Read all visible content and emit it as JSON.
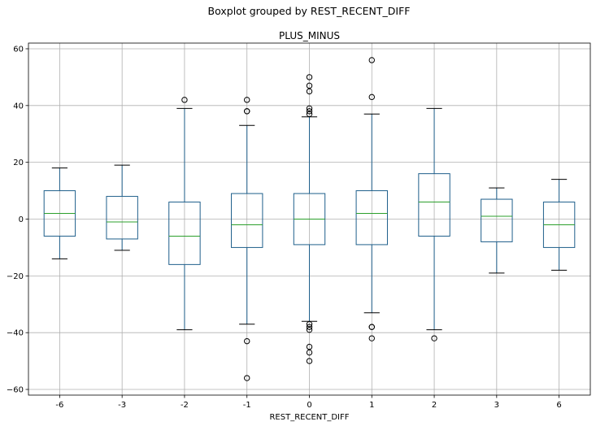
{
  "chart_data": {
    "type": "boxplot",
    "suptitle": "Boxplot grouped by REST_RECENT_DIFF",
    "title": "PLUS_MINUS",
    "xlabel": "REST_RECENT_DIFF",
    "ylabel": "",
    "ylim": [
      -62,
      62
    ],
    "yticks": [
      -60,
      -40,
      -20,
      0,
      20,
      40,
      60
    ],
    "grid": true,
    "colors": {
      "box": "#1f5f8b",
      "median": "#2ca02c",
      "grid": "#b0b0b0",
      "flier": "#000000"
    },
    "categories": [
      "-6",
      "-3",
      "-2",
      "-1",
      "0",
      "1",
      "2",
      "3",
      "6"
    ],
    "boxes": [
      {
        "category": "-6",
        "whislo": -14,
        "q1": -6,
        "med": 2,
        "q3": 10,
        "whishi": 18,
        "fliers": []
      },
      {
        "category": "-3",
        "whislo": -11,
        "q1": -7,
        "med": -1,
        "q3": 8,
        "whishi": 19,
        "fliers": []
      },
      {
        "category": "-2",
        "whislo": -39,
        "q1": -16,
        "med": -6,
        "q3": 6,
        "whishi": 39,
        "fliers": [
          42
        ]
      },
      {
        "category": "-1",
        "whislo": -37,
        "q1": -10,
        "med": -2,
        "q3": 9,
        "whishi": 33,
        "fliers": [
          38,
          38,
          42,
          -43,
          -56
        ]
      },
      {
        "category": "0",
        "whislo": -36,
        "q1": -9,
        "med": 0,
        "q3": 9,
        "whishi": 36,
        "fliers": [
          37,
          38,
          39,
          45,
          47,
          50,
          -37,
          -38,
          -39,
          -45,
          -47,
          -50
        ]
      },
      {
        "category": "1",
        "whislo": -33,
        "q1": -9,
        "med": 2,
        "q3": 10,
        "whishi": 37,
        "fliers": [
          43,
          56,
          -38,
          -38,
          -42
        ]
      },
      {
        "category": "2",
        "whislo": -39,
        "q1": -6,
        "med": 6,
        "q3": 16,
        "whishi": 39,
        "fliers": [
          -42
        ]
      },
      {
        "category": "3",
        "whislo": -19,
        "q1": -8,
        "med": 1,
        "q3": 7,
        "whishi": 11,
        "fliers": []
      },
      {
        "category": "6",
        "whislo": -18,
        "q1": -10,
        "med": -2,
        "q3": 6,
        "whishi": 14,
        "fliers": []
      }
    ]
  }
}
